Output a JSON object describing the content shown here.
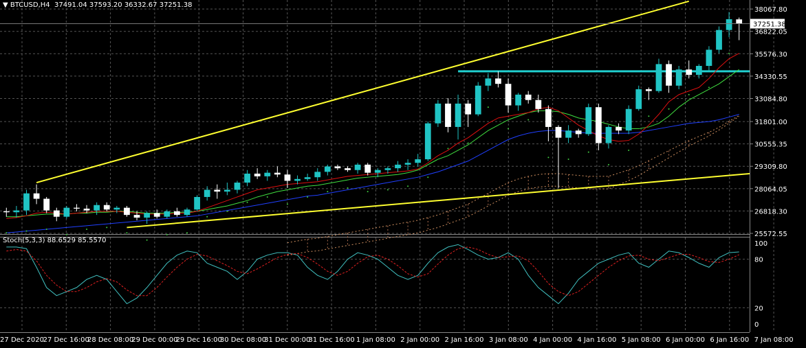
{
  "header": {
    "symbol": "BTCUSD,H4",
    "ohlc": "37491.04 37593.20 36332.67 37251.38",
    "stoch_label": "Stoch(5,3,3) 88.6529 85.5570"
  },
  "colors": {
    "background": "#000000",
    "grid": "#555555",
    "bull_candle": "#20c4c4",
    "bear_candle": "#ffffff",
    "ma_red": "#e01010",
    "ma_lime": "#40e040",
    "ma_blue": "#2040ff",
    "trendline": "#ffff30",
    "hline": "#20d0d0",
    "stoch_main": "#40c0c0",
    "stoch_signal": "#e02020",
    "channel": "#40d040"
  },
  "chart_data": {
    "type": "candlestick",
    "price_axis": {
      "ticks": [
        38067.8,
        36822.05,
        35576.3,
        34330.55,
        33084.8,
        31801.0,
        30555.35,
        29309.8,
        28064.05,
        26818.3,
        25572.55
      ],
      "range": [
        25572.55,
        38570
      ]
    },
    "current_price": "37251.38",
    "time_axis": [
      "27 Dec 2020",
      "27 Dec 16:00",
      "28 Dec 08:00",
      "29 Dec 00:00",
      "29 Dec 16:00",
      "30 Dec 08:00",
      "31 Dec 00:00",
      "31 Dec 16:00",
      "1 Jan 08:00",
      "2 Jan 00:00",
      "2 Jan 16:00",
      "3 Jan 08:00",
      "4 Jan 00:00",
      "4 Jan 16:00",
      "5 Jan 08:00",
      "6 Jan 00:00",
      "6 Jan 16:00",
      "7 Jan 08:00"
    ],
    "candles": [
      {
        "o": 26800,
        "h": 27000,
        "l": 26500,
        "c": 26750
      },
      {
        "o": 26750,
        "h": 27100,
        "l": 26450,
        "c": 26850
      },
      {
        "o": 26850,
        "h": 28000,
        "l": 26600,
        "c": 27800
      },
      {
        "o": 27800,
        "h": 28300,
        "l": 27200,
        "c": 27500
      },
      {
        "o": 27500,
        "h": 27600,
        "l": 26700,
        "c": 26850
      },
      {
        "o": 26850,
        "h": 27000,
        "l": 26250,
        "c": 26500
      },
      {
        "o": 26500,
        "h": 27100,
        "l": 26400,
        "c": 27000
      },
      {
        "o": 27000,
        "h": 27200,
        "l": 26800,
        "c": 26950
      },
      {
        "o": 26950,
        "h": 27150,
        "l": 26700,
        "c": 26850
      },
      {
        "o": 26850,
        "h": 27300,
        "l": 26600,
        "c": 27150
      },
      {
        "o": 27150,
        "h": 27300,
        "l": 26800,
        "c": 26900
      },
      {
        "o": 26900,
        "h": 27100,
        "l": 26700,
        "c": 27000
      },
      {
        "o": 27000,
        "h": 27100,
        "l": 26500,
        "c": 26600
      },
      {
        "o": 26600,
        "h": 26800,
        "l": 26300,
        "c": 26450
      },
      {
        "o": 26450,
        "h": 26800,
        "l": 26100,
        "c": 26700
      },
      {
        "o": 26700,
        "h": 26900,
        "l": 26400,
        "c": 26500
      },
      {
        "o": 26500,
        "h": 26900,
        "l": 26400,
        "c": 26800
      },
      {
        "o": 26800,
        "h": 27000,
        "l": 26500,
        "c": 26600
      },
      {
        "o": 26600,
        "h": 27000,
        "l": 26500,
        "c": 26900
      },
      {
        "o": 26900,
        "h": 27700,
        "l": 26800,
        "c": 27600
      },
      {
        "o": 27600,
        "h": 28200,
        "l": 27400,
        "c": 28000
      },
      {
        "o": 28000,
        "h": 28300,
        "l": 27500,
        "c": 27900
      },
      {
        "o": 27900,
        "h": 28400,
        "l": 27700,
        "c": 28000
      },
      {
        "o": 28000,
        "h": 28500,
        "l": 27800,
        "c": 28400
      },
      {
        "o": 28400,
        "h": 29100,
        "l": 28200,
        "c": 28900
      },
      {
        "o": 28900,
        "h": 29200,
        "l": 28600,
        "c": 28750
      },
      {
        "o": 28750,
        "h": 29100,
        "l": 28500,
        "c": 28950
      },
      {
        "o": 28950,
        "h": 29300,
        "l": 28700,
        "c": 28850
      },
      {
        "o": 28850,
        "h": 29100,
        "l": 28100,
        "c": 28500
      },
      {
        "o": 28500,
        "h": 28800,
        "l": 28300,
        "c": 28600
      },
      {
        "o": 28600,
        "h": 28900,
        "l": 28500,
        "c": 28700
      },
      {
        "o": 28700,
        "h": 29200,
        "l": 28500,
        "c": 29000
      },
      {
        "o": 29000,
        "h": 29400,
        "l": 28800,
        "c": 29300
      },
      {
        "o": 29300,
        "h": 29400,
        "l": 29100,
        "c": 29200
      },
      {
        "o": 29200,
        "h": 29300,
        "l": 29000,
        "c": 29100
      },
      {
        "o": 29100,
        "h": 29500,
        "l": 28900,
        "c": 29400
      },
      {
        "o": 29400,
        "h": 29500,
        "l": 28800,
        "c": 28950
      },
      {
        "o": 28950,
        "h": 29200,
        "l": 28700,
        "c": 29100
      },
      {
        "o": 29100,
        "h": 29300,
        "l": 28900,
        "c": 29200
      },
      {
        "o": 29200,
        "h": 29600,
        "l": 29000,
        "c": 29400
      },
      {
        "o": 29400,
        "h": 29700,
        "l": 29100,
        "c": 29500
      },
      {
        "o": 29500,
        "h": 30000,
        "l": 29300,
        "c": 29700
      },
      {
        "o": 29700,
        "h": 31800,
        "l": 29600,
        "c": 31700
      },
      {
        "o": 31700,
        "h": 33000,
        "l": 31500,
        "c": 32800
      },
      {
        "o": 32800,
        "h": 33100,
        "l": 31200,
        "c": 31500
      },
      {
        "o": 31500,
        "h": 33300,
        "l": 30800,
        "c": 32800
      },
      {
        "o": 32800,
        "h": 33000,
        "l": 31500,
        "c": 32200
      },
      {
        "o": 32200,
        "h": 34000,
        "l": 32100,
        "c": 33800
      },
      {
        "o": 33800,
        "h": 34500,
        "l": 33500,
        "c": 34200
      },
      {
        "o": 34200,
        "h": 34600,
        "l": 33700,
        "c": 33900
      },
      {
        "o": 33900,
        "h": 34200,
        "l": 32300,
        "c": 32700
      },
      {
        "o": 32700,
        "h": 33400,
        "l": 32400,
        "c": 33300
      },
      {
        "o": 33300,
        "h": 33500,
        "l": 32800,
        "c": 33000
      },
      {
        "o": 33000,
        "h": 33300,
        "l": 32300,
        "c": 32500
      },
      {
        "o": 32500,
        "h": 32700,
        "l": 30700,
        "c": 31500
      },
      {
        "o": 31500,
        "h": 31600,
        "l": 28100,
        "c": 30900
      },
      {
        "o": 30900,
        "h": 31600,
        "l": 30600,
        "c": 31300
      },
      {
        "o": 31300,
        "h": 31400,
        "l": 30900,
        "c": 31100
      },
      {
        "o": 31100,
        "h": 32800,
        "l": 31000,
        "c": 32600
      },
      {
        "o": 32600,
        "h": 32800,
        "l": 30200,
        "c": 30600
      },
      {
        "o": 30600,
        "h": 31600,
        "l": 30300,
        "c": 31500
      },
      {
        "o": 31500,
        "h": 31700,
        "l": 31100,
        "c": 31300
      },
      {
        "o": 31300,
        "h": 32700,
        "l": 31100,
        "c": 32500
      },
      {
        "o": 32500,
        "h": 33800,
        "l": 32400,
        "c": 33600
      },
      {
        "o": 33600,
        "h": 33700,
        "l": 33000,
        "c": 33500
      },
      {
        "o": 33500,
        "h": 35300,
        "l": 33400,
        "c": 35000
      },
      {
        "o": 35000,
        "h": 35200,
        "l": 33400,
        "c": 33800
      },
      {
        "o": 33800,
        "h": 34900,
        "l": 33600,
        "c": 34700
      },
      {
        "o": 34700,
        "h": 35200,
        "l": 34200,
        "c": 34400
      },
      {
        "o": 34400,
        "h": 35000,
        "l": 34200,
        "c": 34900
      },
      {
        "o": 34900,
        "h": 36000,
        "l": 34600,
        "c": 35800
      },
      {
        "o": 35800,
        "h": 37100,
        "l": 35600,
        "c": 36900
      },
      {
        "o": 36900,
        "h": 37900,
        "l": 36500,
        "c": 37500
      },
      {
        "o": 37491.04,
        "h": 37593.2,
        "l": 36332.67,
        "c": 37251.38
      }
    ],
    "ma_red": [
      26400,
      26450,
      26550,
      26700,
      26750,
      26700,
      26650,
      26700,
      26750,
      26800,
      26800,
      26800,
      26750,
      26700,
      26650,
      26650,
      26650,
      26700,
      26700,
      26800,
      27000,
      27200,
      27400,
      27600,
      27800,
      28000,
      28100,
      28200,
      28300,
      28350,
      28400,
      28450,
      28550,
      28650,
      28750,
      28800,
      28850,
      28900,
      28950,
      29000,
      29050,
      29150,
      29500,
      29900,
      30200,
      30600,
      30900,
      31300,
      31700,
      32000,
      32100,
      32200,
      32300,
      32500,
      32600,
      32400,
      32000,
      31600,
      31300,
      31000,
      30800,
      30700,
      30750,
      31100,
      31600,
      32200,
      32900,
      33300,
      33500,
      33700,
      34200,
      34800,
      35300,
      35600
    ],
    "ma_lime": [
      26500,
      26500,
      26550,
      26600,
      26650,
      26650,
      26650,
      26700,
      26700,
      26750,
      26750,
      26800,
      26800,
      26750,
      26700,
      26700,
      26700,
      26750,
      26750,
      26800,
      26900,
      27000,
      27100,
      27250,
      27400,
      27600,
      27750,
      27900,
      28000,
      28100,
      28200,
      28250,
      28350,
      28450,
      28550,
      28650,
      28700,
      28750,
      28800,
      28850,
      28950,
      29100,
      29400,
      29700,
      29900,
      30200,
      30500,
      30900,
      31300,
      31600,
      31900,
      32100,
      32300,
      32400,
      32400,
      32350,
      32200,
      32000,
      31900,
      31800,
      31650,
      31500,
      31400,
      31400,
      31500,
      31700,
      32100,
      32600,
      33000,
      33300,
      33600,
      33900,
      34300,
      34700
    ],
    "ma_blue": [
      25600,
      25650,
      25700,
      25750,
      25800,
      25850,
      25900,
      25950,
      26000,
      26050,
      26100,
      26150,
      26200,
      26250,
      26300,
      26350,
      26400,
      26450,
      26500,
      26550,
      26650,
      26750,
      26850,
      26950,
      27050,
      27150,
      27250,
      27350,
      27450,
      27550,
      27650,
      27700,
      27800,
      27900,
      28000,
      28100,
      28200,
      28300,
      28400,
      28500,
      28600,
      28700,
      28850,
      29000,
      29200,
      29400,
      29600,
      29900,
      30200,
      30500,
      30800,
      31000,
      31150,
      31250,
      31300,
      31300,
      31250,
      31200,
      31150,
      31150,
      31150,
      31150,
      31150,
      31200,
      31300,
      31400,
      31500,
      31600,
      31700,
      31750,
      31800,
      31900,
      32050,
      32200
    ],
    "stoch_main": [
      95,
      95,
      93,
      70,
      45,
      35,
      40,
      45,
      55,
      60,
      55,
      40,
      25,
      32,
      45,
      60,
      75,
      85,
      90,
      88,
      75,
      70,
      65,
      55,
      65,
      80,
      85,
      88,
      88,
      85,
      70,
      60,
      55,
      65,
      80,
      88,
      85,
      80,
      70,
      60,
      55,
      60,
      75,
      88,
      95,
      98,
      92,
      85,
      80,
      82,
      88,
      80,
      60,
      45,
      35,
      25,
      38,
      55,
      65,
      75,
      80,
      85,
      88,
      75,
      70,
      80,
      90,
      88,
      82,
      75,
      70,
      82,
      88,
      89
    ],
    "stoch_signal": [
      90,
      92,
      90,
      78,
      60,
      48,
      40,
      40,
      45,
      52,
      56,
      52,
      42,
      35,
      35,
      45,
      58,
      70,
      80,
      86,
      84,
      78,
      72,
      65,
      62,
      68,
      75,
      82,
      86,
      87,
      82,
      74,
      65,
      60,
      65,
      75,
      83,
      85,
      80,
      72,
      62,
      58,
      62,
      74,
      85,
      93,
      95,
      92,
      86,
      82,
      83,
      84,
      78,
      65,
      50,
      40,
      35,
      40,
      50,
      60,
      70,
      78,
      84,
      85,
      80,
      78,
      82,
      86,
      86,
      82,
      77,
      76,
      80,
      85.5
    ],
    "stoch_axis": [
      100,
      80,
      20,
      0
    ],
    "hline_price": 34600,
    "trend_upper": [
      {
        "candle": 3,
        "price": 28400
      },
      {
        "candle": 68,
        "price": 38500
      }
    ],
    "trend_lower": [
      {
        "candle": 12,
        "price": 25900
      },
      {
        "candle": 73,
        "price": 28900
      }
    ]
  }
}
